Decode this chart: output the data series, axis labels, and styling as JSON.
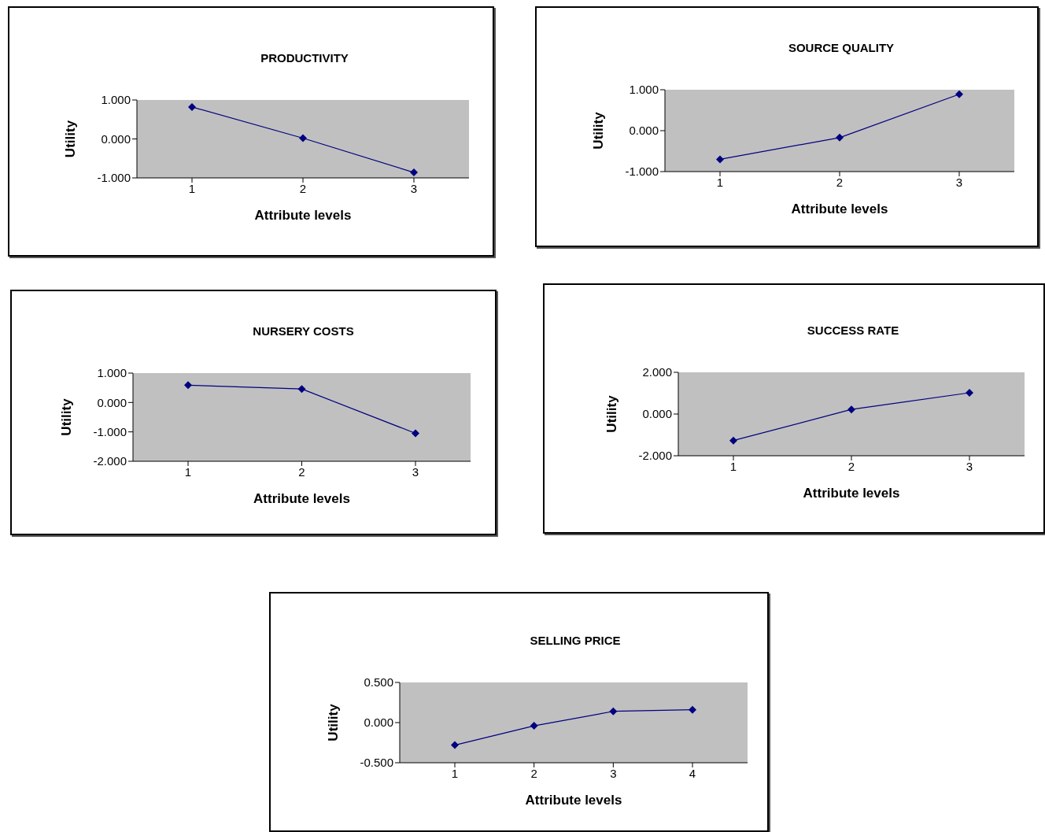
{
  "chart_data": [
    {
      "type": "line",
      "title": "PRODUCTIVITY",
      "xlabel": "Attribute levels",
      "ylabel": "Utility",
      "categories": [
        "1",
        "2",
        "3"
      ],
      "series": [
        {
          "color": "#000080",
          "values": [
            0.82,
            0.02,
            -0.86
          ]
        }
      ],
      "ylim": [
        -1,
        1
      ],
      "yticks": [
        {
          "value": 1,
          "label": "1.000"
        },
        {
          "value": 0,
          "label": "0.000"
        },
        {
          "value": -1,
          "label": "-1.000"
        }
      ],
      "marker": "diamond",
      "line_style": "solid",
      "legend": false
    },
    {
      "type": "line",
      "title": "SOURCE QUALITY",
      "xlabel": "Attribute levels",
      "ylabel": "Utility",
      "categories": [
        "1",
        "2",
        "3"
      ],
      "series": [
        {
          "color": "#000080",
          "values": [
            -0.7,
            -0.17,
            0.89
          ]
        }
      ],
      "ylim": [
        -1,
        1
      ],
      "yticks": [
        {
          "value": 1,
          "label": "1.000"
        },
        {
          "value": 0,
          "label": "0.000"
        },
        {
          "value": -1,
          "label": "-1.000"
        }
      ],
      "marker": "diamond",
      "line_style": "solid",
      "legend": false
    },
    {
      "type": "line",
      "title": "NURSERY COSTS",
      "xlabel": "Attribute levels",
      "ylabel": "Utility",
      "categories": [
        "1",
        "2",
        "3"
      ],
      "series": [
        {
          "color": "#000080",
          "values": [
            0.59,
            0.46,
            -1.05
          ]
        }
      ],
      "ylim": [
        -2,
        1
      ],
      "yticks": [
        {
          "value": 1,
          "label": "1.000"
        },
        {
          "value": 0,
          "label": "0.000"
        },
        {
          "value": -1,
          "label": "-1.000"
        },
        {
          "value": -2,
          "label": "-2.000"
        }
      ],
      "marker": "diamond",
      "line_style": "solid",
      "legend": false
    },
    {
      "type": "line",
      "title": "SUCCESS RATE",
      "xlabel": "Attribute levels",
      "ylabel": "Utility",
      "categories": [
        "1",
        "2",
        "3"
      ],
      "series": [
        {
          "color": "#000080",
          "values": [
            -1.27,
            0.22,
            1.02
          ]
        }
      ],
      "ylim": [
        -2,
        2
      ],
      "yticks": [
        {
          "value": 2,
          "label": "2.000"
        },
        {
          "value": 0,
          "label": "0.000"
        },
        {
          "value": -2,
          "label": "-2.000"
        }
      ],
      "marker": "diamond",
      "line_style": "solid",
      "legend": false
    },
    {
      "type": "line",
      "title": "SELLING PRICE",
      "xlabel": "Attribute levels",
      "ylabel": "Utility",
      "categories": [
        "1",
        "2",
        "3",
        "4"
      ],
      "series": [
        {
          "color": "#000080",
          "values": [
            -0.28,
            -0.04,
            0.14,
            0.16
          ]
        }
      ],
      "ylim": [
        -0.5,
        0.5
      ],
      "yticks": [
        {
          "value": 0.5,
          "label": "0.500"
        },
        {
          "value": 0,
          "label": "0.000"
        },
        {
          "value": -0.5,
          "label": "-0.500"
        }
      ],
      "marker": "diamond",
      "line_style": "solid",
      "legend": false
    }
  ]
}
